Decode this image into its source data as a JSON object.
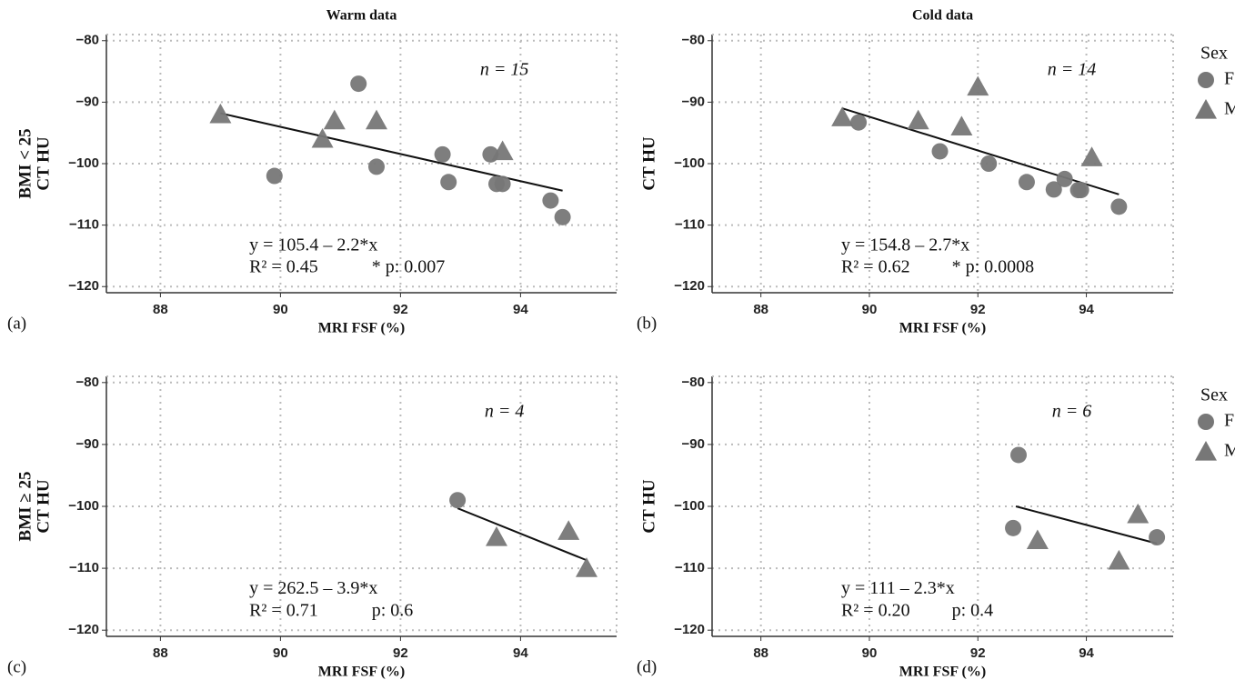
{
  "chart_data": [
    {
      "type": "scatter",
      "title": "Warm data",
      "panel_label": "(a)",
      "ylabel": [
        "BMI < 25",
        "CT HU"
      ],
      "xlabel": "MRI FSF (%)",
      "xlim": [
        87.1,
        95.6
      ],
      "ylim": [
        -121,
        -79
      ],
      "xticks": [
        88,
        90,
        92,
        94
      ],
      "yticks": [
        {
          "value": -120,
          "label": "−120"
        },
        {
          "value": -110,
          "label": "−110"
        },
        {
          "value": -100,
          "label": "−100"
        },
        {
          "value": -90,
          "label": "−90"
        },
        {
          "value": -80,
          "label": "−80"
        }
      ],
      "grid": true,
      "legend": false,
      "series": [
        {
          "color": "#777777",
          "marker": "circle",
          "x": [
            89.9,
            91.3,
            91.6,
            92.7,
            92.8,
            93.5,
            93.6,
            93.7,
            94.5,
            94.7
          ],
          "y": [
            -102,
            -87,
            -100.5,
            -98.5,
            -103,
            -98.5,
            -103.3,
            -103.3,
            -106,
            -108.7
          ]
        },
        {
          "color": "#777777",
          "marker": "triangle",
          "x": [
            89.0,
            90.7,
            90.9,
            91.6,
            93.7
          ],
          "y": [
            -92,
            -96,
            -93,
            -93,
            -98
          ]
        }
      ],
      "fit": {
        "color": "#111111",
        "x": [
          89.0,
          94.7
        ],
        "y": [
          -91.8,
          -104.4
        ]
      },
      "annotations": {
        "n": "n = 15",
        "equation": "y = 105.4 – 2.2*x",
        "r2": "R² = 0.45",
        "p": "* p: 0.007"
      }
    },
    {
      "type": "scatter",
      "title": "Cold data",
      "panel_label": "(b)",
      "ylabel": [
        "CT HU"
      ],
      "xlabel": "MRI FSF (%)",
      "xlim": [
        87.1,
        95.6
      ],
      "ylim": [
        -121,
        -79
      ],
      "xticks": [
        88,
        90,
        92,
        94
      ],
      "yticks": [
        {
          "value": -120,
          "label": "−120"
        },
        {
          "value": -110,
          "label": "−110"
        },
        {
          "value": -100,
          "label": "−100"
        },
        {
          "value": -90,
          "label": "−90"
        },
        {
          "value": -80,
          "label": "−80"
        }
      ],
      "grid": true,
      "legend": true,
      "legend_title": "Sex",
      "series": [
        {
          "name": "F",
          "color": "#777777",
          "marker": "circle",
          "x": [
            89.8,
            91.3,
            92.2,
            92.9,
            93.4,
            93.6,
            93.85,
            93.9,
            94.6
          ],
          "y": [
            -93.3,
            -98,
            -100,
            -103,
            -104.2,
            -102.5,
            -104.3,
            -104.3,
            -107
          ]
        },
        {
          "name": "M",
          "color": "#777777",
          "marker": "triangle",
          "x": [
            89.5,
            90.9,
            91.7,
            92.0,
            94.1
          ],
          "y": [
            -92.5,
            -93,
            -94,
            -87.5,
            -99
          ]
        }
      ],
      "fit": {
        "color": "#111111",
        "x": [
          89.5,
          94.6
        ],
        "y": [
          -91,
          -105
        ]
      },
      "annotations": {
        "n": "n = 14",
        "equation": "y = 154.8 – 2.7*x",
        "r2": "R² = 0.62",
        "p": "* p: 0.0008"
      }
    },
    {
      "type": "scatter",
      "panel_label": "(c)",
      "ylabel": [
        "BMI ≥ 25",
        "CT HU"
      ],
      "xlabel": "MRI FSF (%)",
      "xlim": [
        87.1,
        95.6
      ],
      "ylim": [
        -121,
        -79
      ],
      "xticks": [
        88,
        90,
        92,
        94
      ],
      "yticks": [
        {
          "value": -120,
          "label": "−120"
        },
        {
          "value": -110,
          "label": "−110"
        },
        {
          "value": -100,
          "label": "−100"
        },
        {
          "value": -90,
          "label": "−90"
        },
        {
          "value": -80,
          "label": "−80"
        }
      ],
      "grid": true,
      "legend": false,
      "series": [
        {
          "color": "#777777",
          "marker": "circle",
          "x": [
            92.95
          ],
          "y": [
            -99
          ]
        },
        {
          "color": "#777777",
          "marker": "triangle",
          "x": [
            93.6,
            94.8,
            95.1
          ],
          "y": [
            -105,
            -104,
            -110
          ]
        }
      ],
      "fit": {
        "color": "#111111",
        "x": [
          92.95,
          95.1
        ],
        "y": [
          -100.3,
          -108.7
        ]
      },
      "annotations": {
        "n": "n = 4",
        "equation": "y = 262.5 – 3.9*x",
        "r2": "R² = 0.71",
        "p": "p: 0.6"
      }
    },
    {
      "type": "scatter",
      "panel_label": "(d)",
      "ylabel": [
        "CT HU"
      ],
      "xlabel": "MRI FSF (%)",
      "xlim": [
        87.1,
        95.6
      ],
      "ylim": [
        -121,
        -79
      ],
      "xticks": [
        88,
        90,
        92,
        94
      ],
      "yticks": [
        {
          "value": -120,
          "label": "−120"
        },
        {
          "value": -110,
          "label": "−110"
        },
        {
          "value": -100,
          "label": "−100"
        },
        {
          "value": -90,
          "label": "−90"
        },
        {
          "value": -80,
          "label": "−80"
        }
      ],
      "grid": true,
      "legend": true,
      "legend_title": "Sex",
      "series": [
        {
          "name": "F",
          "color": "#777777",
          "marker": "circle",
          "x": [
            92.75,
            92.65,
            95.3
          ],
          "y": [
            -91.7,
            -103.5,
            -105
          ]
        },
        {
          "name": "M",
          "color": "#777777",
          "marker": "triangle",
          "x": [
            93.1,
            94.6,
            94.95
          ],
          "y": [
            -105.5,
            -108.8,
            -101.3
          ]
        }
      ],
      "fit": {
        "color": "#111111",
        "x": [
          92.7,
          95.3
        ],
        "y": [
          -100,
          -106
        ]
      },
      "annotations": {
        "n": "n = 6",
        "equation": "y = 111 – 2.3*x",
        "r2": "R² = 0.20",
        "p": "p: 0.4"
      }
    }
  ]
}
